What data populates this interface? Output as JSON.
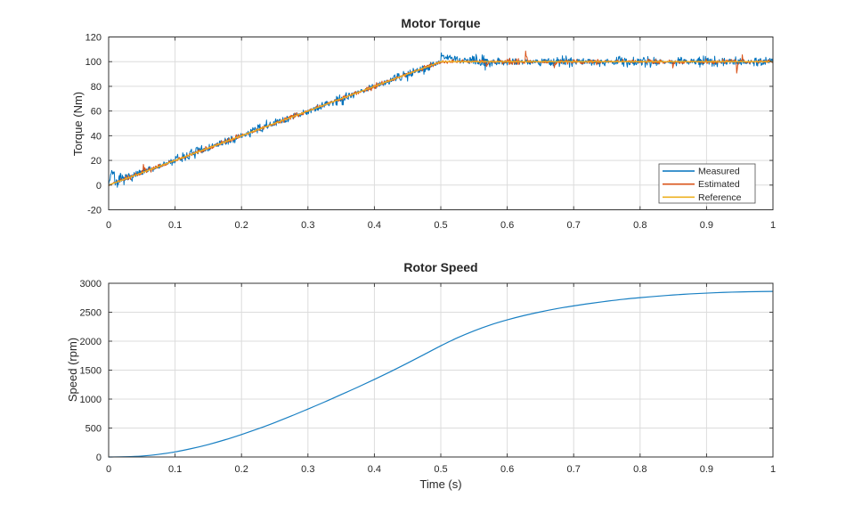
{
  "colors": {
    "measured": "#0072BD",
    "estimated": "#D95319",
    "reference": "#EDB120",
    "speed": "#0072BD",
    "grid": "#dcdcdc",
    "axis": "#333333",
    "text": "#262626",
    "legend_border": "#4d4d4d",
    "background": "#ffffff"
  },
  "chart_data": [
    {
      "type": "line",
      "title": "Motor Torque",
      "xlabel": "",
      "ylabel": "Torque (Nm)",
      "xlim": [
        0,
        1
      ],
      "ylim": [
        -20,
        120
      ],
      "xticks": [
        0,
        0.1,
        0.2,
        0.3,
        0.4,
        0.5,
        0.6,
        0.7,
        0.8,
        0.9,
        1
      ],
      "xtick_labels": [
        "0",
        "0.1",
        "0.2",
        "0.3",
        "0.4",
        "0.5",
        "0.6",
        "0.7",
        "0.8",
        "0.9",
        "1"
      ],
      "yticks": [
        -20,
        0,
        20,
        40,
        60,
        80,
        100,
        120
      ],
      "ytick_labels": [
        "-20",
        "0",
        "20",
        "40",
        "60",
        "80",
        "100",
        "120"
      ],
      "grid": true,
      "legend": {
        "position": "inside-bottom-right",
        "entries": [
          "Measured",
          "Estimated",
          "Reference"
        ]
      },
      "base_points": [
        [
          0,
          0
        ],
        [
          0.5,
          100
        ],
        [
          1,
          100
        ]
      ],
      "series": [
        {
          "name": "Measured",
          "color": "#0072BD",
          "style": "noisy",
          "noise_amplitude": 5.2,
          "seed": 7,
          "start_spike": {
            "t": 0.005,
            "height": 11,
            "width": 0.0035
          },
          "overshoot": {
            "amp": 5,
            "tau": 0.022
          },
          "width": 1
        },
        {
          "name": "Estimated",
          "color": "#D95319",
          "style": "noisy",
          "noise_amplitude": 2.4,
          "seed": 99,
          "spikes": {
            "prob": 0.004,
            "min": 4,
            "max": 9
          },
          "width": 1
        },
        {
          "name": "Reference",
          "color": "#EDB120",
          "style": "clean",
          "width": 1.3
        }
      ]
    },
    {
      "type": "line",
      "title": "Rotor Speed",
      "xlabel": "Time (s)",
      "ylabel": "Speed (rpm)",
      "xlim": [
        0,
        1
      ],
      "ylim": [
        0,
        3000
      ],
      "xticks": [
        0,
        0.1,
        0.2,
        0.3,
        0.4,
        0.5,
        0.6,
        0.7,
        0.8,
        0.9,
        1
      ],
      "xtick_labels": [
        "0",
        "0.1",
        "0.2",
        "0.3",
        "0.4",
        "0.5",
        "0.6",
        "0.7",
        "0.8",
        "0.9",
        "1"
      ],
      "yticks": [
        0,
        500,
        1000,
        1500,
        2000,
        2500,
        3000
      ],
      "ytick_labels": [
        "0",
        "500",
        "1000",
        "1500",
        "2000",
        "2500",
        "3000"
      ],
      "grid": true,
      "series": [
        {
          "name": "Speed",
          "color": "#0072BD",
          "style": "smooth",
          "width": 1.2,
          "opacity": 0.9,
          "points": [
            [
              0,
              0
            ],
            [
              0.025,
              4
            ],
            [
              0.05,
              16
            ],
            [
              0.075,
              45
            ],
            [
              0.1,
              88
            ],
            [
              0.125,
              146
            ],
            [
              0.15,
              215
            ],
            [
              0.175,
              296
            ],
            [
              0.2,
              388
            ],
            [
              0.225,
              487
            ],
            [
              0.25,
              594
            ],
            [
              0.275,
              708
            ],
            [
              0.3,
              828
            ],
            [
              0.325,
              950
            ],
            [
              0.35,
              1078
            ],
            [
              0.375,
              1206
            ],
            [
              0.4,
              1340
            ],
            [
              0.425,
              1478
            ],
            [
              0.45,
              1622
            ],
            [
              0.475,
              1770
            ],
            [
              0.5,
              1920
            ],
            [
              0.525,
              2058
            ],
            [
              0.55,
              2178
            ],
            [
              0.575,
              2282
            ],
            [
              0.6,
              2368
            ],
            [
              0.625,
              2442
            ],
            [
              0.65,
              2506
            ],
            [
              0.675,
              2562
            ],
            [
              0.7,
              2610
            ],
            [
              0.725,
              2652
            ],
            [
              0.75,
              2690
            ],
            [
              0.775,
              2724
            ],
            [
              0.8,
              2752
            ],
            [
              0.825,
              2776
            ],
            [
              0.85,
              2798
            ],
            [
              0.875,
              2816
            ],
            [
              0.9,
              2830
            ],
            [
              0.925,
              2842
            ],
            [
              0.95,
              2850
            ],
            [
              0.975,
              2856
            ],
            [
              1,
              2860
            ]
          ]
        }
      ]
    }
  ]
}
